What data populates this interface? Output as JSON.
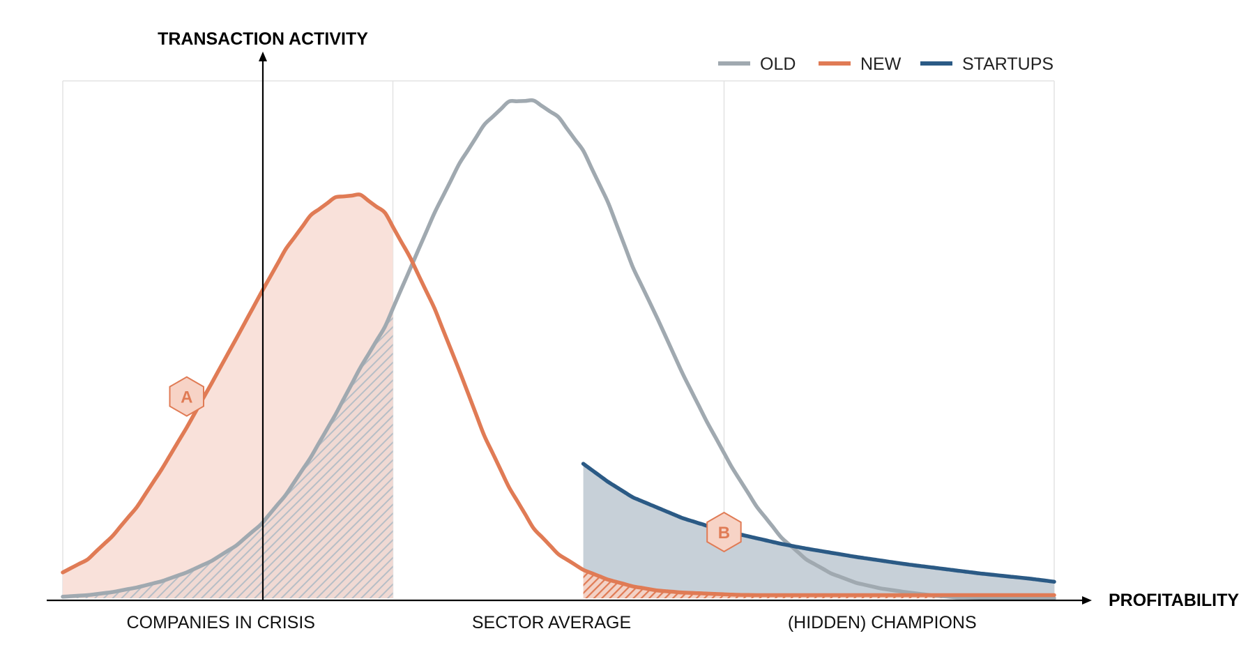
{
  "chart_data": {
    "type": "line",
    "title": "",
    "ylabel": "TRANSACTION ACTIVITY",
    "xlabel": "PROFITABILITY",
    "x_tick_labels": [
      "COMPANIES IN CRISIS",
      "SECTOR AVERAGE",
      "(HIDDEN) CHAMPIONS"
    ],
    "xlim": [
      0,
      100
    ],
    "ylim": [
      0,
      100
    ],
    "region_bounds": [
      33.3,
      66.7
    ],
    "grid": true,
    "legend_position": "top-right",
    "colors": {
      "old": "#a0a9b0",
      "new": "#e07b55",
      "startups": "#2b5a85",
      "regionA_fill": "#f9e1da",
      "regionB_fill": "#c7d0d8",
      "grid": "#e3e3e3"
    },
    "x": [
      0,
      2.5,
      5,
      7.5,
      10,
      12.5,
      15,
      17.5,
      20,
      22.5,
      25,
      27.5,
      30,
      32.5,
      35,
      37.5,
      40,
      42.5,
      45,
      47.5,
      50,
      52.5,
      55,
      57.5,
      60,
      62.5,
      65,
      67.5,
      70,
      72.5,
      75,
      77.5,
      80,
      82.5,
      85,
      87.5,
      90,
      92.5,
      95,
      97.5,
      100
    ],
    "series": [
      {
        "name": "OLD",
        "values": [
          0.3,
          0.6,
          1.2,
          2.1,
          3.3,
          5,
          7.2,
          10.2,
          14.3,
          20,
          27.2,
          35.5,
          44.5,
          52.5,
          63.5,
          74.5,
          84,
          91.5,
          96,
          96.2,
          93,
          86.5,
          76.5,
          64,
          54,
          43.5,
          34,
          25.3,
          17.7,
          11.7,
          7.5,
          4.8,
          3,
          1.9,
          1.2,
          0.6,
          0.2,
          0.1,
          0,
          0,
          0
        ]
      },
      {
        "name": "NEW",
        "values": [
          5,
          7.5,
          12,
          17.7,
          25,
          33,
          41.5,
          50.2,
          59,
          67.5,
          74,
          77.5,
          78,
          74.5,
          66,
          56,
          44,
          31.5,
          21.5,
          13.5,
          8.5,
          5.5,
          3.6,
          2.3,
          1.5,
          1.1,
          0.9,
          0.7,
          0.6,
          0.6,
          0.6,
          0.6,
          0.6,
          0.6,
          0.6,
          0.6,
          0.6,
          0.6,
          0.6,
          0.6,
          0.6
        ]
      },
      {
        "name": "STARTUPS",
        "x": [
          52.5,
          55,
          57.5,
          60,
          62.5,
          65,
          67.5,
          70,
          72.5,
          75,
          77.5,
          80,
          82.5,
          85,
          87.5,
          90,
          92.5,
          95,
          97.5,
          100
        ],
        "values": [
          26,
          22.5,
          19.5,
          17.5,
          15.5,
          14,
          12.7,
          11.6,
          10.5,
          9.6,
          8.8,
          8,
          7.3,
          6.6,
          6,
          5.4,
          4.8,
          4.3,
          3.8,
          3.2
        ]
      }
    ],
    "annotations": [
      {
        "label": "A",
        "x": 12.5,
        "y": 39
      },
      {
        "label": "B",
        "x": 66.7,
        "y": 12.8
      }
    ]
  },
  "legend": {
    "items": [
      {
        "label": "OLD",
        "color": "#a0a9b0"
      },
      {
        "label": "NEW",
        "color": "#e07b55"
      },
      {
        "label": "STARTUPS",
        "color": "#2b5a85"
      }
    ]
  }
}
